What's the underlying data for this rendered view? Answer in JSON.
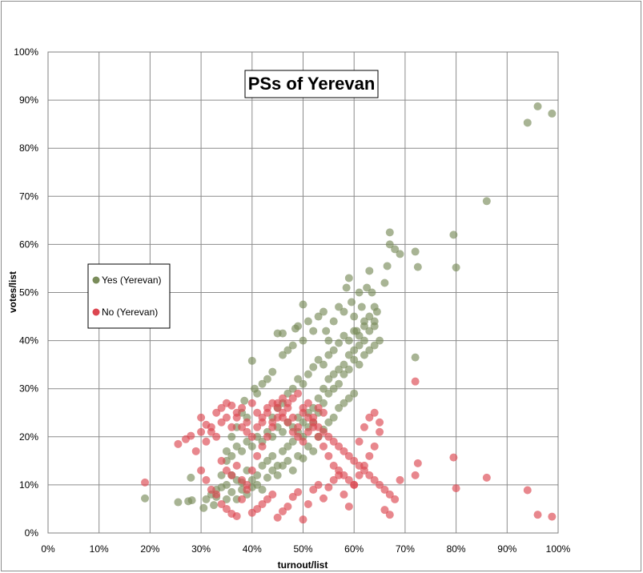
{
  "chart_data": {
    "type": "scatter",
    "title": "PSs of Yerevan",
    "xlabel": "turnout/list",
    "ylabel": "votes/list",
    "xlim": [
      0,
      100
    ],
    "ylim": [
      0,
      100
    ],
    "x_ticks": [
      "0%",
      "10%",
      "20%",
      "30%",
      "40%",
      "50%",
      "60%",
      "70%",
      "80%",
      "90%",
      "100%"
    ],
    "y_ticks": [
      "0%",
      "10%",
      "20%",
      "30%",
      "40%",
      "50%",
      "60%",
      "70%",
      "80%",
      "90%",
      "100%"
    ],
    "grid": true,
    "legend_position": "left",
    "series": [
      {
        "name": "Yes (Yerevan)",
        "color": "#7a8c5a",
        "points": [
          [
            19,
            7.2
          ],
          [
            25.5,
            6.4
          ],
          [
            27.5,
            6.6
          ],
          [
            28.2,
            6.8
          ],
          [
            28,
            11.5
          ],
          [
            30.5,
            5.2
          ],
          [
            32.5,
            5.8
          ],
          [
            33,
            9
          ],
          [
            34,
            12
          ],
          [
            35,
            15
          ],
          [
            36,
            20
          ],
          [
            37,
            22
          ],
          [
            38,
            25
          ],
          [
            38.5,
            27.5
          ],
          [
            39,
            24
          ],
          [
            40,
            35.8
          ],
          [
            40.5,
            30
          ],
          [
            41,
            29
          ],
          [
            42,
            31
          ],
          [
            43,
            32
          ],
          [
            44,
            33.5
          ],
          [
            45,
            41.5
          ],
          [
            46,
            41.5
          ],
          [
            46,
            37
          ],
          [
            47,
            38
          ],
          [
            48,
            39
          ],
          [
            48.5,
            42.5
          ],
          [
            49,
            43
          ],
          [
            50,
            40
          ],
          [
            50,
            47.5
          ],
          [
            51,
            44
          ],
          [
            52,
            42
          ],
          [
            53,
            45
          ],
          [
            54,
            46
          ],
          [
            54.5,
            42
          ],
          [
            55,
            40
          ],
          [
            56,
            44
          ],
          [
            57,
            47
          ],
          [
            58,
            46
          ],
          [
            58.5,
            51
          ],
          [
            59,
            53
          ],
          [
            59.5,
            48
          ],
          [
            60,
            45
          ],
          [
            60.5,
            42
          ],
          [
            61,
            50
          ],
          [
            61.5,
            47
          ],
          [
            62,
            44
          ],
          [
            62.5,
            51
          ],
          [
            63,
            54.5
          ],
          [
            63.5,
            50
          ],
          [
            64,
            47
          ],
          [
            64.5,
            46
          ],
          [
            65,
            40
          ],
          [
            66,
            52
          ],
          [
            66.5,
            55.5
          ],
          [
            67,
            62.5
          ],
          [
            67,
            60
          ],
          [
            68,
            59
          ],
          [
            69,
            58
          ],
          [
            72,
            58.5
          ],
          [
            72.5,
            55.3
          ],
          [
            72,
            36.5
          ],
          [
            79.5,
            62
          ],
          [
            80,
            55.2
          ],
          [
            86,
            69
          ],
          [
            94,
            85.3
          ],
          [
            96,
            88.7
          ],
          [
            98.8,
            87.2
          ],
          [
            35,
            10
          ],
          [
            36,
            12
          ],
          [
            37,
            11
          ],
          [
            38,
            9
          ],
          [
            39,
            13
          ],
          [
            40,
            11
          ],
          [
            41,
            12
          ],
          [
            42,
            14
          ],
          [
            43,
            15
          ],
          [
            44,
            16
          ],
          [
            45,
            14
          ],
          [
            46,
            17
          ],
          [
            47,
            18
          ],
          [
            48,
            19
          ],
          [
            49,
            21
          ],
          [
            50,
            20
          ],
          [
            51,
            22
          ],
          [
            52,
            23
          ],
          [
            53,
            25
          ],
          [
            54,
            27
          ],
          [
            55,
            29
          ],
          [
            56,
            30
          ],
          [
            57,
            31
          ],
          [
            58,
            33
          ],
          [
            59,
            34
          ],
          [
            60,
            36
          ],
          [
            61,
            35
          ],
          [
            62,
            37
          ],
          [
            63,
            38
          ],
          [
            64,
            39
          ],
          [
            31,
            7
          ],
          [
            32,
            8
          ],
          [
            33,
            7.5
          ],
          [
            34,
            9.5
          ],
          [
            35,
            7
          ],
          [
            36,
            8.5
          ],
          [
            37,
            7
          ],
          [
            38,
            10.5
          ],
          [
            39,
            8
          ],
          [
            40,
            9.5
          ],
          [
            41,
            10
          ],
          [
            42,
            9
          ],
          [
            43,
            11.5
          ],
          [
            44,
            13
          ],
          [
            45,
            12
          ],
          [
            46,
            14
          ],
          [
            47,
            15
          ],
          [
            48,
            13
          ],
          [
            49,
            16
          ],
          [
            50,
            15.5
          ],
          [
            51,
            18
          ],
          [
            52,
            17
          ],
          [
            53,
            20
          ],
          [
            54,
            21.5
          ],
          [
            55,
            23
          ],
          [
            56,
            24
          ],
          [
            57,
            26
          ],
          [
            58,
            27
          ],
          [
            59,
            28
          ],
          [
            60,
            29
          ],
          [
            44,
            24
          ],
          [
            45,
            26
          ],
          [
            46,
            27
          ],
          [
            47,
            29
          ],
          [
            48,
            30
          ],
          [
            49,
            32
          ],
          [
            50,
            31
          ],
          [
            51,
            33
          ],
          [
            52,
            34.5
          ],
          [
            53,
            36
          ],
          [
            54,
            35
          ],
          [
            55,
            37
          ],
          [
            56,
            38
          ],
          [
            57,
            39.5
          ],
          [
            58,
            41
          ],
          [
            59,
            40
          ],
          [
            60,
            42
          ],
          [
            61,
            41
          ],
          [
            62,
            43
          ],
          [
            63,
            45
          ],
          [
            64,
            44
          ],
          [
            35,
            17
          ],
          [
            36,
            16
          ],
          [
            37,
            18
          ],
          [
            38,
            17
          ],
          [
            39,
            19
          ],
          [
            40,
            18
          ],
          [
            41,
            20
          ],
          [
            42,
            19
          ],
          [
            43,
            21
          ],
          [
            44,
            20
          ],
          [
            45,
            22
          ],
          [
            46,
            21
          ],
          [
            47,
            23
          ],
          [
            48,
            22
          ],
          [
            49,
            24
          ],
          [
            50,
            23
          ],
          [
            51,
            25
          ],
          [
            52,
            26
          ],
          [
            53,
            28
          ],
          [
            54,
            30
          ],
          [
            55,
            32
          ],
          [
            56,
            33
          ],
          [
            57,
            34
          ],
          [
            58,
            35
          ],
          [
            59,
            37
          ],
          [
            60,
            38
          ],
          [
            61,
            39
          ],
          [
            62,
            40
          ],
          [
            63,
            42
          ],
          [
            64,
            43
          ]
        ]
      },
      {
        "name": "No (Yerevan)",
        "color": "#dc4650",
        "points": [
          [
            19,
            10.5
          ],
          [
            25.5,
            18.5
          ],
          [
            27,
            19.5
          ],
          [
            28,
            20.2
          ],
          [
            29,
            17
          ],
          [
            30,
            21
          ],
          [
            31,
            19
          ],
          [
            32,
            22
          ],
          [
            33,
            20
          ],
          [
            34,
            23
          ],
          [
            35,
            24
          ],
          [
            36,
            22
          ],
          [
            37,
            25
          ],
          [
            38,
            26
          ],
          [
            39,
            23
          ],
          [
            40,
            27
          ],
          [
            41,
            25
          ],
          [
            42,
            24
          ],
          [
            43,
            26
          ],
          [
            44,
            23
          ],
          [
            45,
            27
          ],
          [
            46,
            28
          ],
          [
            47,
            26
          ],
          [
            48,
            24
          ],
          [
            49,
            22
          ],
          [
            50,
            25
          ],
          [
            51,
            27
          ],
          [
            52,
            23
          ],
          [
            53,
            22
          ],
          [
            54,
            21
          ],
          [
            55,
            20
          ],
          [
            56,
            19
          ],
          [
            57,
            18
          ],
          [
            58,
            17
          ],
          [
            59,
            16
          ],
          [
            60,
            15
          ],
          [
            61,
            14
          ],
          [
            62,
            13
          ],
          [
            63,
            12
          ],
          [
            64,
            11
          ],
          [
            65,
            10
          ],
          [
            66,
            9
          ],
          [
            67,
            8
          ],
          [
            68,
            7
          ],
          [
            69,
            11
          ],
          [
            72,
            31.5
          ],
          [
            72.5,
            14.5
          ],
          [
            72,
            12
          ],
          [
            79.5,
            15.7
          ],
          [
            80,
            9.3
          ],
          [
            86,
            11.5
          ],
          [
            94,
            8.9
          ],
          [
            96,
            3.8
          ],
          [
            98.8,
            3.4
          ],
          [
            34,
            15
          ],
          [
            35,
            13
          ],
          [
            36,
            12
          ],
          [
            37,
            14
          ],
          [
            38,
            11
          ],
          [
            39,
            9
          ],
          [
            40,
            4.2
          ],
          [
            41,
            5
          ],
          [
            42,
            6
          ],
          [
            43,
            7
          ],
          [
            44,
            8
          ],
          [
            45,
            3.2
          ],
          [
            46,
            4.5
          ],
          [
            47,
            5.5
          ],
          [
            48,
            7.5
          ],
          [
            49,
            8.5
          ],
          [
            50,
            2.8
          ],
          [
            51,
            6
          ],
          [
            52,
            9
          ],
          [
            53,
            10
          ],
          [
            54,
            7.2
          ],
          [
            55,
            9.5
          ],
          [
            56,
            11
          ],
          [
            57,
            12
          ],
          [
            58,
            8
          ],
          [
            59,
            5.5
          ],
          [
            60,
            10
          ],
          [
            61,
            12
          ],
          [
            62,
            14
          ],
          [
            63,
            16
          ],
          [
            64,
            18
          ],
          [
            65,
            21
          ],
          [
            66,
            4.8
          ],
          [
            67,
            3.8
          ],
          [
            30,
            13
          ],
          [
            31,
            11
          ],
          [
            32,
            9
          ],
          [
            33,
            8
          ],
          [
            34,
            6
          ],
          [
            35,
            5
          ],
          [
            36,
            4
          ],
          [
            37,
            3.5
          ],
          [
            38,
            7
          ],
          [
            39,
            10
          ],
          [
            40,
            13
          ],
          [
            41,
            16
          ],
          [
            42,
            18
          ],
          [
            43,
            20
          ],
          [
            44,
            22
          ],
          [
            45,
            24
          ],
          [
            46,
            25
          ],
          [
            47,
            27
          ],
          [
            48,
            28
          ],
          [
            49,
            29
          ],
          [
            50,
            26
          ],
          [
            51,
            24
          ],
          [
            52,
            22
          ],
          [
            53,
            20
          ],
          [
            54,
            18
          ],
          [
            55,
            16
          ],
          [
            56,
            14
          ],
          [
            57,
            13
          ],
          [
            58,
            12
          ],
          [
            59,
            11
          ],
          [
            60,
            10
          ],
          [
            61,
            19
          ],
          [
            62,
            22
          ],
          [
            63,
            24
          ],
          [
            64,
            25
          ],
          [
            65,
            23
          ],
          [
            30,
            24
          ],
          [
            31,
            22.5
          ],
          [
            32,
            21
          ],
          [
            33,
            25
          ],
          [
            34,
            26
          ],
          [
            35,
            27
          ],
          [
            36,
            26.5
          ],
          [
            37,
            24
          ],
          [
            38,
            22
          ],
          [
            39,
            21
          ],
          [
            40,
            20
          ],
          [
            41,
            22
          ],
          [
            42,
            23
          ],
          [
            43,
            25
          ],
          [
            44,
            27
          ],
          [
            45,
            26
          ],
          [
            46,
            24
          ],
          [
            47,
            23
          ],
          [
            48,
            21
          ],
          [
            49,
            20
          ],
          [
            50,
            19
          ],
          [
            51,
            21
          ],
          [
            52,
            24
          ],
          [
            53,
            26
          ],
          [
            54,
            25
          ]
        ]
      }
    ]
  }
}
